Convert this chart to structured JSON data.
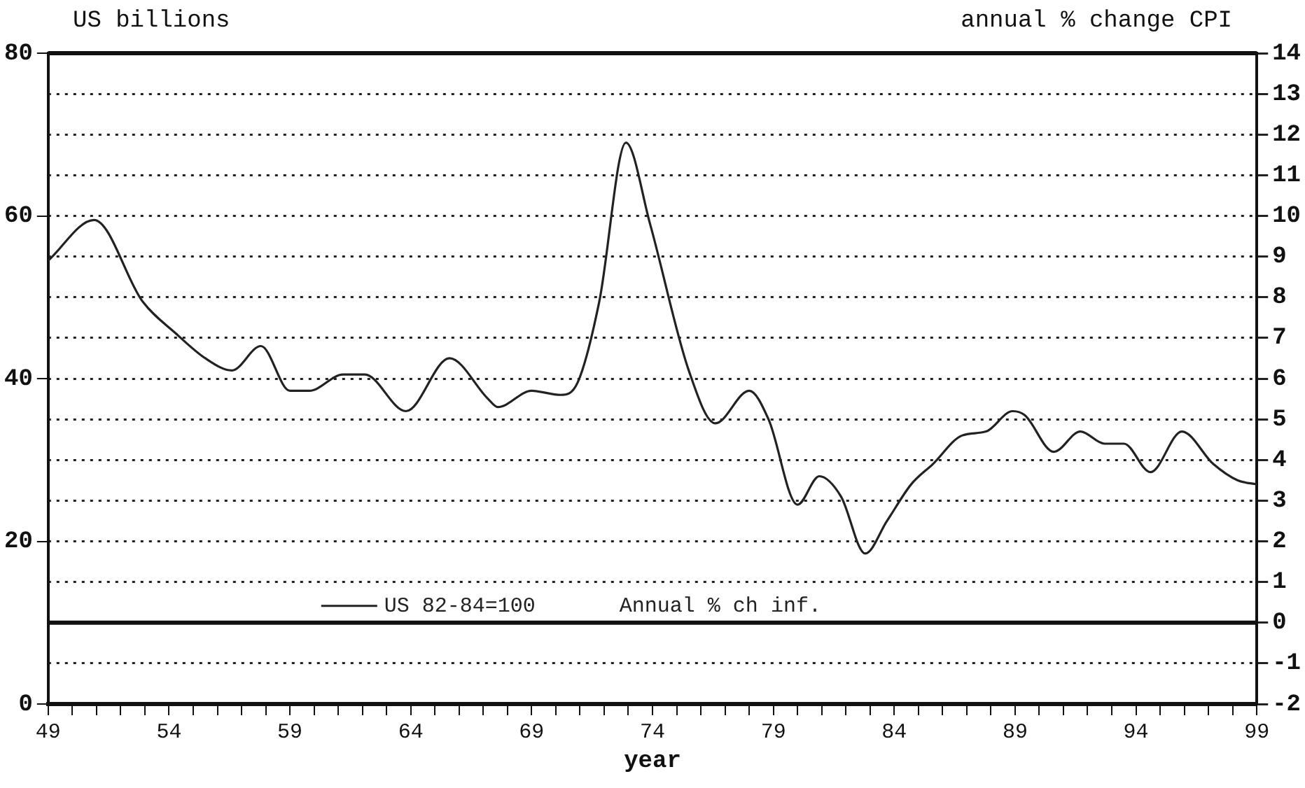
{
  "chart_data": {
    "type": "line",
    "xlabel": "year",
    "ylabel": "US billions",
    "y2label": "annual % change CPI",
    "x": [
      49,
      50.9,
      52.9,
      54.3,
      55.5,
      56.6,
      57.8,
      59.0,
      59.8,
      61.2,
      62.1,
      63.8,
      65.6,
      67.2,
      67.6,
      69.0,
      70.2,
      70.9,
      71.8,
      72.9,
      73.9,
      75.5,
      76.6,
      78.0,
      78.8,
      80.0,
      80.9,
      81.8,
      82.8,
      83.7,
      84.7,
      85.6,
      86.8,
      87.8,
      88.9,
      89.4,
      90.6,
      91.7,
      92.7,
      93.5,
      94.6,
      95.9,
      97.2,
      98.2,
      99
    ],
    "series": [
      {
        "name": "US 82-84=100",
        "color": "#222222",
        "axis": "y2",
        "values": [
          8.9,
          9.9,
          7.9,
          7.1,
          6.5,
          6.2,
          6.8,
          5.7,
          5.7,
          6.1,
          6.1,
          5.2,
          6.5,
          5.5,
          5.3,
          5.7,
          5.6,
          5.9,
          7.9,
          11.8,
          9.8,
          6.2,
          4.9,
          5.7,
          5.0,
          2.9,
          3.6,
          3.1,
          1.7,
          2.5,
          3.4,
          3.9,
          4.6,
          4.7,
          5.2,
          5.1,
          4.2,
          4.7,
          4.4,
          4.4,
          3.7,
          4.7,
          3.9,
          3.5,
          3.4
        ]
      }
    ],
    "annotations": [
      "Annual % ch inf."
    ],
    "xlim": [
      49,
      99
    ],
    "xticks": [
      49,
      {
        "value": 50,
        "label": null
      },
      {
        "value": 51,
        "label": null
      },
      {
        "value": 52,
        "label": null
      },
      {
        "value": 53,
        "label": null
      },
      54,
      {
        "value": 55,
        "label": null
      },
      {
        "value": 56,
        "label": null
      },
      {
        "value": 57,
        "label": null
      },
      {
        "value": 58,
        "label": null
      },
      59,
      {
        "value": 60,
        "label": null
      },
      {
        "value": 61,
        "label": null
      },
      {
        "value": 62,
        "label": null
      },
      {
        "value": 63,
        "label": null
      },
      64,
      {
        "value": 65,
        "label": null
      },
      {
        "value": 66,
        "label": null
      },
      {
        "value": 67,
        "label": null
      },
      {
        "value": 68,
        "label": null
      },
      69,
      {
        "value": 70,
        "label": null
      },
      {
        "value": 71,
        "label": null
      },
      {
        "value": 72,
        "label": null
      },
      {
        "value": 73,
        "label": null
      },
      74,
      {
        "value": 75,
        "label": null
      },
      {
        "value": 76,
        "label": null
      },
      {
        "value": 77,
        "label": null
      },
      {
        "value": 78,
        "label": null
      },
      79,
      {
        "value": 80,
        "label": null
      },
      {
        "value": 81,
        "label": null
      },
      {
        "value": 82,
        "label": null
      },
      {
        "value": 83,
        "label": null
      },
      84,
      {
        "value": 85,
        "label": null
      },
      {
        "value": 86,
        "label": null
      },
      {
        "value": 87,
        "label": null
      },
      {
        "value": 88,
        "label": null
      },
      89,
      {
        "value": 90,
        "label": null
      },
      {
        "value": 91,
        "label": null
      },
      {
        "value": 92,
        "label": null
      },
      {
        "value": 93,
        "label": null
      },
      94,
      {
        "value": 95,
        "label": null
      },
      {
        "value": 96,
        "label": null
      },
      {
        "value": 97,
        "label": null
      },
      {
        "value": 98,
        "label": null
      },
      99
    ],
    "ylim": [
      0,
      80
    ],
    "yticks": [
      0,
      20,
      40,
      60,
      80
    ],
    "y2lim": [
      -2,
      14
    ],
    "y2ticks": [
      -2,
      -1,
      0,
      1,
      2,
      3,
      4,
      5,
      6,
      7,
      8,
      9,
      10,
      11,
      12,
      13,
      14
    ],
    "ref_lines": [
      {
        "axis": "y2",
        "value": 0,
        "color": "#111111",
        "line_style": "solid"
      }
    ],
    "grid": "y2",
    "legend": "bottom",
    "marker": "none",
    "line_style": "solid"
  }
}
